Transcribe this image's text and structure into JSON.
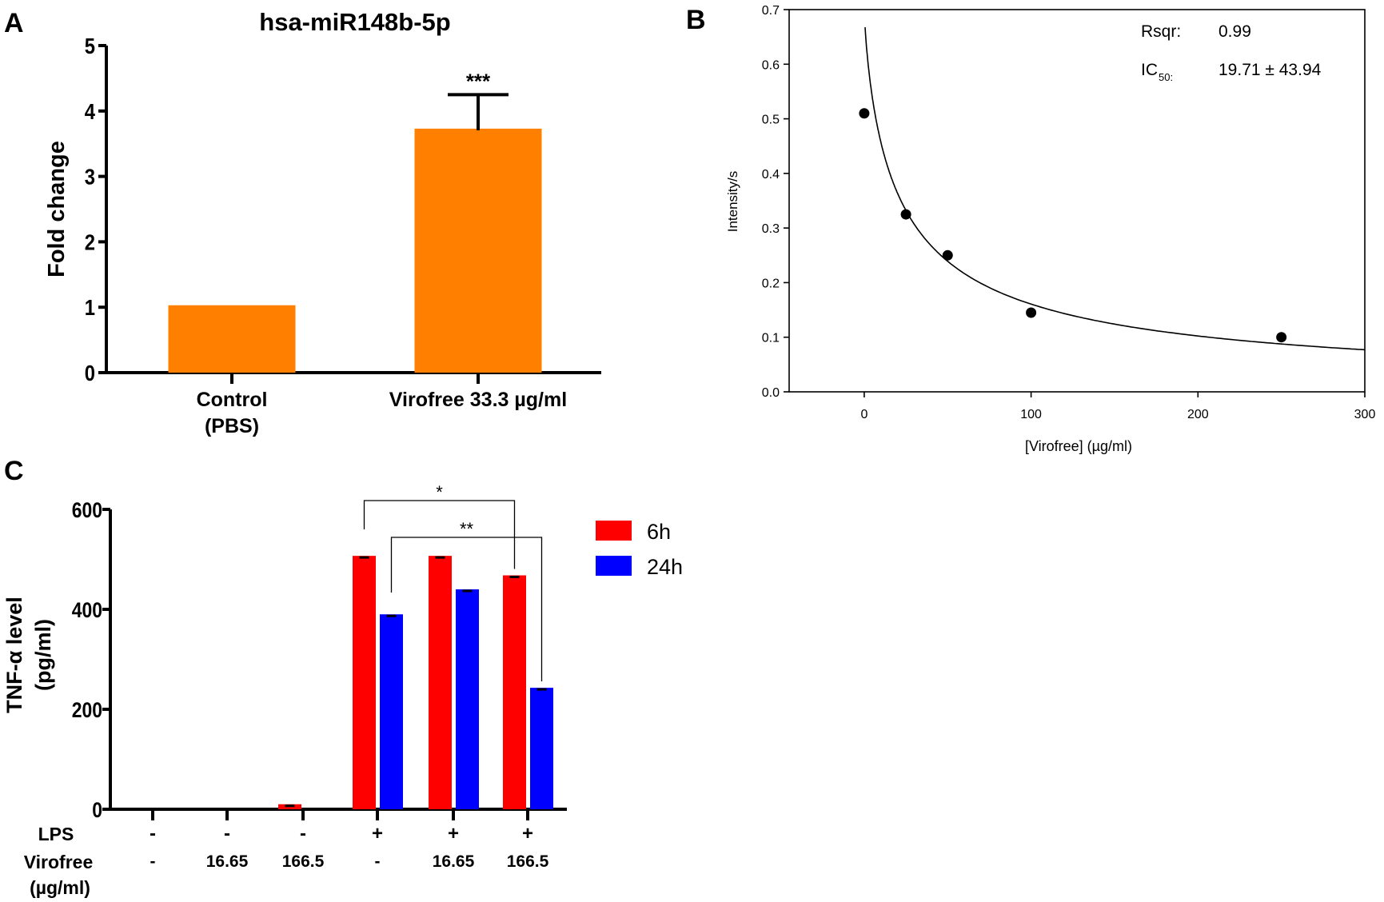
{
  "panels": {
    "a": "A",
    "b": "B",
    "c": "C"
  },
  "chart_data": [
    {
      "type": "bar",
      "title": "hsa-miR148b-5p",
      "ylabel": "Fold change",
      "xlabel": "",
      "ylim": [
        0,
        5
      ],
      "yticks": [
        "0",
        "1",
        "2",
        "3",
        "4",
        "5"
      ],
      "categories": [
        [
          "Control",
          "(PBS)"
        ],
        [
          "Virofree 33.3 µg/ml"
        ]
      ],
      "values": [
        1.03,
        3.73
      ],
      "error_upper": [
        null,
        4.25
      ],
      "significance": [
        null,
        "***"
      ],
      "color": "#ff8000"
    },
    {
      "type": "scatter",
      "xlabel": "[Virofree] (µg/ml)",
      "ylabel": "Intensity/s",
      "xlim": [
        -45,
        300
      ],
      "ylim": [
        0,
        0.7
      ],
      "xticks": [
        "0",
        "100",
        "200",
        "300"
      ],
      "yticks": [
        "0.0",
        "0.1",
        "0.2",
        "0.3",
        "0.4",
        "0.5",
        "0.6",
        "0.7"
      ],
      "x": [
        0,
        25,
        50,
        100,
        250
      ],
      "y": [
        0.51,
        0.325,
        0.25,
        0.145,
        0.1
      ],
      "fit": {
        "top": 0.7,
        "ic50": 22,
        "hill": 0.8
      },
      "annotations": {
        "rsqr_label": "Rsqr:",
        "rsqr_value": "0.99",
        "ic50_label": "IC",
        "ic50_sub": "50:",
        "ic50_value": "19.71 ± 43.94"
      }
    },
    {
      "type": "bar",
      "ylabel": [
        "TNF-α level",
        "(pg/ml)"
      ],
      "ylim": [
        0,
        600
      ],
      "yticks": [
        "0",
        "200",
        "400",
        "600"
      ],
      "row_labels": {
        "lps": "LPS",
        "virofree": "Virofree",
        "unit": "(µg/ml)"
      },
      "lps": [
        "-",
        "-",
        "-",
        "+",
        "+",
        "+"
      ],
      "virofree": [
        "-",
        "16.65",
        "166.5",
        "-",
        "16.65",
        "166.5"
      ],
      "series": [
        {
          "name": "6h",
          "color": "#ff0000",
          "values": [
            0,
            0,
            10,
            507,
            507,
            468
          ]
        },
        {
          "name": "24h",
          "color": "#0000ff",
          "values": [
            0,
            0,
            0,
            390,
            440,
            243
          ]
        }
      ],
      "brackets": [
        {
          "label": "*",
          "from": [
            3,
            0
          ],
          "to": [
            5,
            0
          ]
        },
        {
          "label": "**",
          "from": [
            3,
            1
          ],
          "to": [
            5,
            1
          ]
        }
      ],
      "legend": "right"
    }
  ]
}
